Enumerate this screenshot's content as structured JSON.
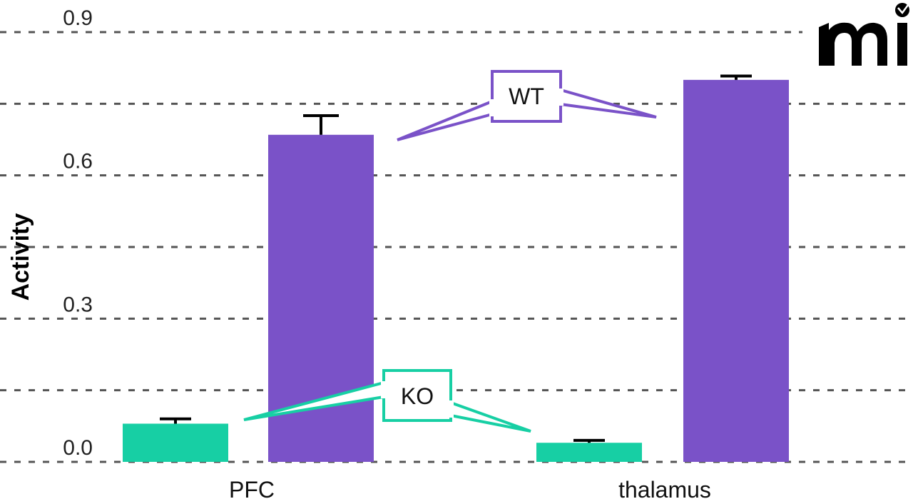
{
  "chart_data": {
    "type": "bar",
    "title": "",
    "xlabel": "",
    "ylabel": "Activity",
    "ylim": [
      0,
      0.9
    ],
    "yticks": [
      0.0,
      0.3,
      0.6,
      0.9
    ],
    "yticks_labels": [
      "0.0",
      "0.3",
      "0.6",
      "0.9"
    ],
    "grid": true,
    "categories": [
      "PFC",
      "thalamus"
    ],
    "series": [
      {
        "name": "KO",
        "color": "#17CFA4",
        "values": [
          0.08,
          0.04
        ],
        "errors": [
          0.01,
          0.005
        ]
      },
      {
        "name": "WT",
        "color": "#7A52C8",
        "values": [
          0.685,
          0.8
        ],
        "errors": [
          0.04,
          0.008
        ]
      }
    ],
    "annotations": [
      {
        "text": "WT",
        "series": "WT"
      },
      {
        "text": "KO",
        "series": "KO"
      }
    ]
  },
  "logo": {
    "name": "mi-logo",
    "text": "mi"
  }
}
